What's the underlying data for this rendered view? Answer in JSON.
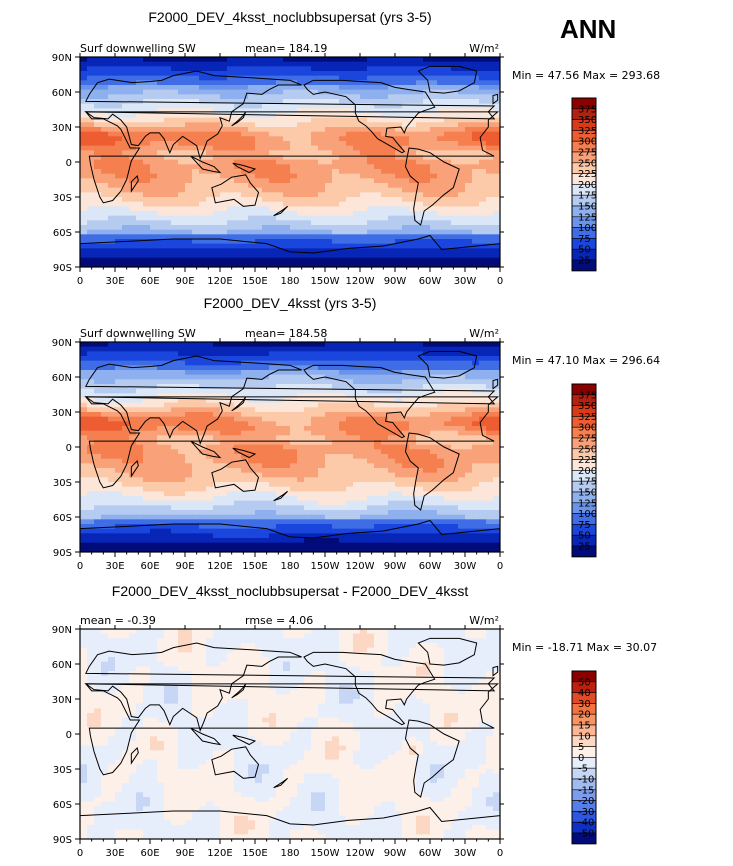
{
  "season_label": "ANN",
  "units_label": "W/m²",
  "x_ticks": [
    "0",
    "30E",
    "60E",
    "90E",
    "120E",
    "150E",
    "180",
    "150W",
    "120W",
    "90W",
    "60W",
    "30W",
    "0"
  ],
  "y_ticks": [
    "90N",
    "60N",
    "30N",
    "0",
    "30S",
    "60S",
    "90S"
  ],
  "chart_data": [
    {
      "type": "heatmap",
      "title": "F2000_DEV_4ksst_noclubbsupersat (yrs 3-5)",
      "left_label": "Surf downwelling SW",
      "mean_text": "mean= 184.19",
      "units": "W/m²",
      "minmax_text": "Min =  47.56 Max = 293.68",
      "min": 47.56,
      "max": 293.68,
      "mean": 184.19,
      "colorbar_levels": [
        "375",
        "350",
        "325",
        "300",
        "275",
        "250",
        "225",
        "200",
        "175",
        "150",
        "125",
        "100",
        "75",
        "50",
        "25"
      ]
    },
    {
      "type": "heatmap",
      "title": "F2000_DEV_4ksst (yrs 3-5)",
      "left_label": "Surf downwelling SW",
      "mean_text": "mean= 184.58",
      "units": "W/m²",
      "minmax_text": "Min =  47.10 Max = 296.64",
      "min": 47.1,
      "max": 296.64,
      "mean": 184.58,
      "colorbar_levels": [
        "375",
        "350",
        "325",
        "300",
        "275",
        "250",
        "225",
        "200",
        "175",
        "150",
        "125",
        "100",
        "75",
        "50",
        "25"
      ]
    },
    {
      "type": "heatmap",
      "title": "F2000_DEV_4ksst_noclubbsupersat - F2000_DEV_4ksst",
      "left_label": "mean =   -0.39",
      "mean_text": "rmse =    4.06",
      "units": "W/m²",
      "minmax_text": "Min = -18.71 Max =  30.07",
      "min": -18.71,
      "max": 30.07,
      "mean": -0.39,
      "rmse": 4.06,
      "colorbar_levels": [
        "50",
        "40",
        "30",
        "20",
        "15",
        "10",
        "5",
        "0",
        "-5",
        "-10",
        "-15",
        "-20",
        "-30",
        "-40",
        "-50"
      ]
    }
  ],
  "colors": {
    "abs_palette": [
      "#8b0000",
      "#b22210",
      "#d83a1a",
      "#ee5c32",
      "#f57f4f",
      "#f9a27a",
      "#fcc9a9",
      "#fbe6d9",
      "#dbe6f6",
      "#b6cbf0",
      "#8fb0ee",
      "#6a93ea",
      "#3f6de6",
      "#1b46de",
      "#0726b8",
      "#020b7a"
    ],
    "diff_palette": [
      "#8b0000",
      "#c01e0e",
      "#e24a26",
      "#f3723f",
      "#f79462",
      "#fab695",
      "#fcd8c4",
      "#fcf0e8",
      "#e6eefb",
      "#c6d6f4",
      "#a1bbef",
      "#7c9ded",
      "#557ee8",
      "#2d56e2",
      "#0f30c7",
      "#020b7a"
    ]
  }
}
